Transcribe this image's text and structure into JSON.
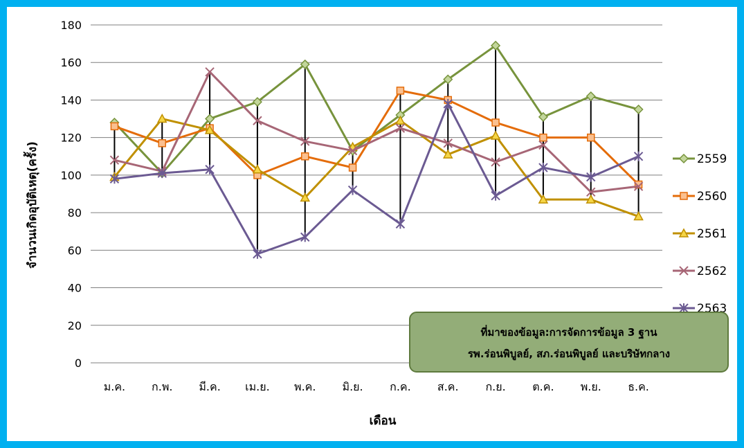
{
  "chart_data": {
    "type": "line",
    "title": "",
    "xlabel": "เดือน",
    "ylabel": "จำนวนเกิดอุบัติเหตุ(ครั้ง)",
    "ylim": [
      0,
      180
    ],
    "yticks": [
      0,
      20,
      40,
      60,
      80,
      100,
      120,
      140,
      160,
      180
    ],
    "categories": [
      "ม.ค.",
      "ก.พ.",
      "มี.ค.",
      "เม.ย.",
      "พ.ค.",
      "มิ.ย.",
      "ก.ค.",
      "ส.ค.",
      "ก.ย.",
      "ต.ค.",
      "พ.ย.",
      "ธ.ค."
    ],
    "grid": true,
    "legend_position": "right",
    "high_low_lines": true,
    "series": [
      {
        "name": "2559",
        "color": "#77933C",
        "marker": "diamond",
        "values": [
          128,
          101,
          130,
          139,
          159,
          113,
          132,
          151,
          169,
          131,
          142,
          135
        ]
      },
      {
        "name": "2560",
        "color": "#E46C0A",
        "marker": "square",
        "values": [
          126,
          117,
          125,
          100,
          110,
          104,
          145,
          140,
          128,
          120,
          120,
          95
        ]
      },
      {
        "name": "2561",
        "color": "#C09000",
        "marker": "triangle",
        "values": [
          99,
          130,
          124,
          103,
          88,
          115,
          129,
          111,
          121,
          87,
          87,
          78
        ]
      },
      {
        "name": "2562",
        "color": "#A76676",
        "marker": "x",
        "values": [
          108,
          102,
          155,
          129,
          118,
          113,
          125,
          117,
          107,
          116,
          91,
          94
        ]
      },
      {
        "name": "2563",
        "color": "#6B5A92",
        "marker": "star",
        "values": [
          98,
          101,
          103,
          58,
          67,
          92,
          74,
          138,
          89,
          104,
          99,
          110
        ]
      }
    ],
    "annotation": {
      "lines": [
        "ที่มาของข้อมูล:การจัดการข้อมูล 3 ฐาน",
        "รพ.ร่อนพิบูลย์, สภ.ร่อนพิบูลย์ และบริษัทกลาง"
      ],
      "fill": "#93AD78",
      "border": "#5E7A3D"
    }
  }
}
